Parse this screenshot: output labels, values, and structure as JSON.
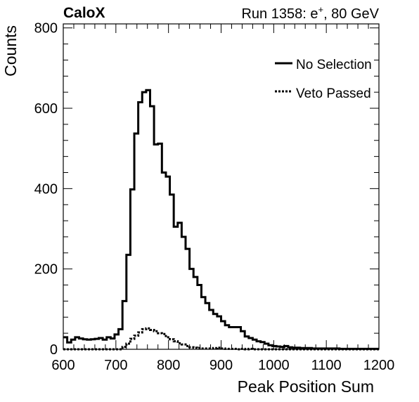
{
  "chart_data": {
    "type": "line",
    "header_left": "CaloX",
    "header_right_prefix": "Run 1358: e",
    "header_right_sup": "+",
    "header_right_suffix": ", 80 GeV",
    "xlabel": "Peak Position Sum",
    "ylabel": "Counts",
    "xlim": [
      600,
      1200
    ],
    "ylim": [
      0,
      810
    ],
    "bin_width": 7.5,
    "x_ticks": [
      600,
      700,
      800,
      900,
      1000,
      1100,
      1200
    ],
    "y_ticks": [
      0,
      200,
      400,
      600,
      800
    ],
    "legend": {
      "position": "top-right"
    },
    "series": [
      {
        "name": "No Selection",
        "style": "solid",
        "color": "#000000",
        "values": [
          30,
          17,
          24,
          30,
          27,
          25,
          24,
          25,
          26,
          28,
          24,
          30,
          27,
          37,
          50,
          120,
          235,
          398,
          537,
          615,
          640,
          645,
          605,
          510,
          512,
          440,
          430,
          385,
          305,
          315,
          280,
          250,
          200,
          180,
          160,
          130,
          115,
          98,
          88,
          82,
          70,
          60,
          55,
          55,
          55,
          45,
          32,
          28,
          24,
          20,
          18,
          14,
          10,
          8,
          7,
          6,
          8,
          5,
          4,
          4,
          3,
          3,
          3,
          2,
          2,
          2,
          2,
          2,
          2,
          2,
          1,
          1,
          1,
          1,
          1,
          1,
          1,
          1,
          1,
          1
        ]
      },
      {
        "name": "Veto Passed",
        "style": "dotted",
        "color": "#000000",
        "values": [
          0,
          0,
          0,
          0,
          0,
          0,
          0,
          0,
          0,
          0,
          0,
          0,
          0,
          0,
          0,
          6,
          14,
          26,
          34,
          42,
          50,
          52,
          48,
          45,
          40,
          38,
          30,
          25,
          20,
          15,
          12,
          8,
          5,
          4,
          3,
          2,
          2,
          2,
          3,
          4,
          2,
          1,
          1,
          1,
          0,
          1,
          0,
          1,
          0,
          0,
          0,
          0,
          0,
          0,
          0,
          0,
          0,
          0,
          0,
          0,
          0,
          0,
          0,
          0,
          0,
          0,
          0,
          0,
          0,
          0,
          0,
          0,
          0,
          0,
          0,
          0,
          0,
          0,
          0,
          0
        ]
      }
    ]
  }
}
